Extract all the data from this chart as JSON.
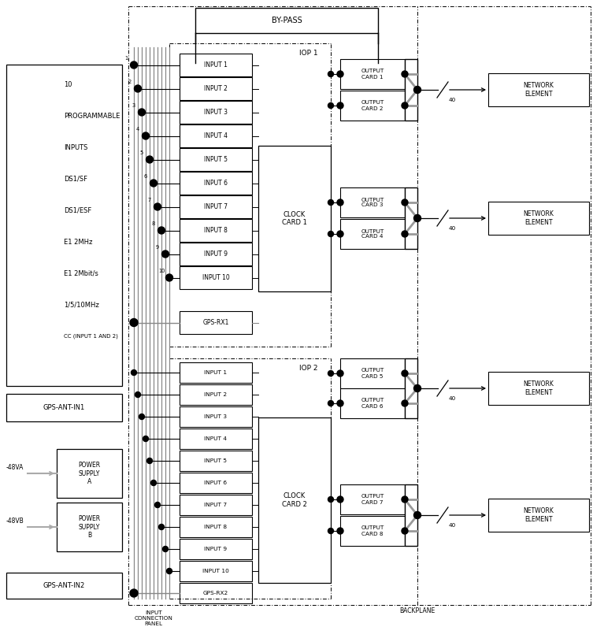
{
  "fig_w": 7.53,
  "fig_h": 7.96,
  "black": "#000000",
  "gray": "#aaaaaa",
  "white": "#ffffff",
  "left_labels": [
    "10",
    "PROGRAMMABLE",
    "INPUTS",
    "DS1/SF",
    "DS1/ESF",
    "E1 2MHz",
    "E1 2Mbit/s",
    "1/5/10MHz",
    "CC (INPUT 1 AND 2)"
  ],
  "iop1_inputs": [
    "INPUT 1",
    "INPUT 2",
    "INPUT 3",
    "INPUT 4",
    "INPUT 5",
    "INPUT 6",
    "INPUT 7",
    "INPUT 8",
    "INPUT 9",
    "INPUT 10",
    "GPS-RX1"
  ],
  "iop2_inputs": [
    "INPUT 1",
    "INPUT 2",
    "INPUT 3",
    "INPUT 4",
    "INPUT 5",
    "INPUT 6",
    "INPUT 7",
    "INPUT 8",
    "INPUT 9",
    "INPUT 10",
    "GPS-RX2"
  ],
  "oc_top": [
    "OUTPUT\nCARD 1",
    "OUTPUT\nCARD 2",
    "OUTPUT\nCARD 3",
    "OUTPUT\nCARD 4"
  ],
  "oc_bot": [
    "OUTPUT\nCARD 5",
    "OUTPUT\nCARD 6",
    "OUTPUT\nCARD 7",
    "OUTPUT\nCARD 8"
  ],
  "ne": "NETWORK\nELEMENT",
  "bypass": "BY-PASS",
  "iop1": "IOP 1",
  "iop2": "IOP 2",
  "cc1": "CLOCK\nCARD 1",
  "cc2": "CLOCK\nCARD 2",
  "backplane": "BACKPLANE",
  "icp": "INPUT\nCONNECTION\nPANEL",
  "gps1": "GPS-ANT-IN1",
  "gps2": "GPS-ANT-IN2",
  "psa": "POWER\nSUPPLY\nA",
  "psb": "POWER\nSUPPLY\nB",
  "v48a": "-48VA",
  "v48b": "-48VB"
}
